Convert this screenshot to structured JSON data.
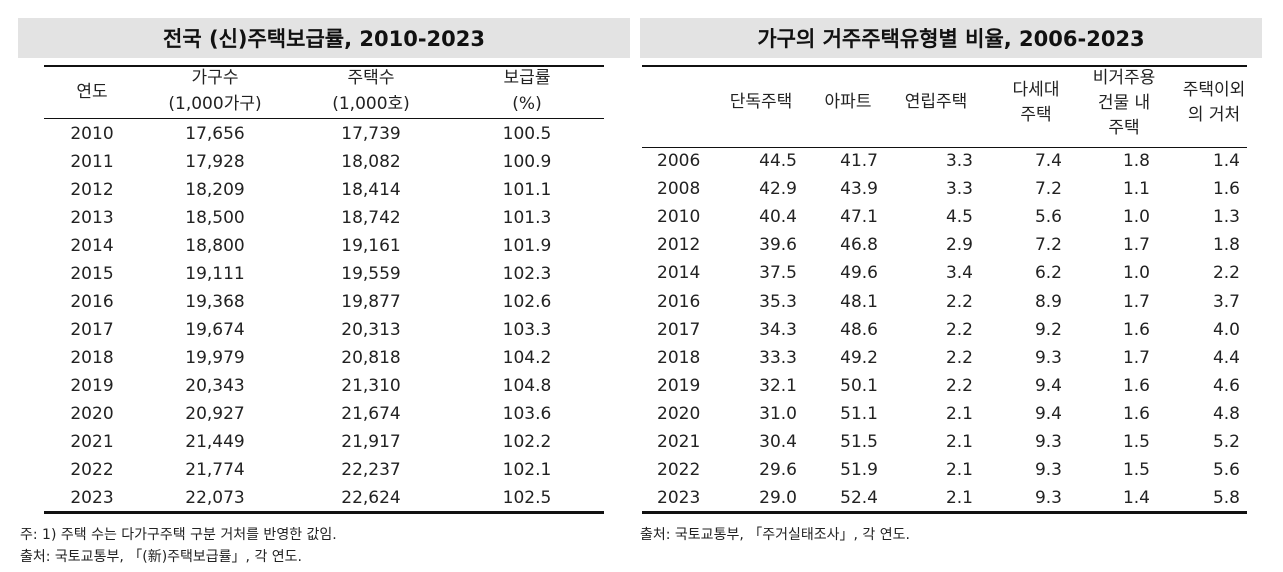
{
  "left": {
    "title": "전국 (신)주택보급률, 2010-2023",
    "headers": [
      [
        "연도"
      ],
      [
        "가구수",
        "(1,000가구)"
      ],
      [
        "주택수",
        "(1,000호)"
      ],
      [
        "보급률",
        "(%)"
      ]
    ],
    "rows": [
      [
        "2010",
        "17,656",
        "17,739",
        "100.5"
      ],
      [
        "2011",
        "17,928",
        "18,082",
        "100.9"
      ],
      [
        "2012",
        "18,209",
        "18,414",
        "101.1"
      ],
      [
        "2013",
        "18,500",
        "18,742",
        "101.3"
      ],
      [
        "2014",
        "18,800",
        "19,161",
        "101.9"
      ],
      [
        "2015",
        "19,111",
        "19,559",
        "102.3"
      ],
      [
        "2016",
        "19,368",
        "19,877",
        "102.6"
      ],
      [
        "2017",
        "19,674",
        "20,313",
        "103.3"
      ],
      [
        "2018",
        "19,979",
        "20,818",
        "104.2"
      ],
      [
        "2019",
        "20,343",
        "21,310",
        "104.8"
      ],
      [
        "2020",
        "20,927",
        "21,674",
        "103.6"
      ],
      [
        "2021",
        "21,449",
        "21,917",
        "102.2"
      ],
      [
        "2022",
        "21,774",
        "22,237",
        "102.1"
      ],
      [
        "2023",
        "22,073",
        "22,624",
        "102.5"
      ]
    ],
    "notes": [
      "주: 1) 주택 수는 다가구주택 구분 거처를 반영한 값임.",
      "출처: 국토교통부, 「(新)주택보급률」, 각 연도."
    ]
  },
  "right": {
    "title": "가구의 거주주택유형별 비율, 2006-2023",
    "headers": [
      [
        "단독주택"
      ],
      [
        "아파트"
      ],
      [
        "연립주택"
      ],
      [
        "다세대",
        "주택"
      ],
      [
        "비거주용",
        "건물 내",
        "주택"
      ],
      [
        "주택이외",
        "의 거처"
      ]
    ],
    "rows": [
      [
        "2006",
        "44.5",
        "41.7",
        "3.3",
        "7.4",
        "1.8",
        "1.4"
      ],
      [
        "2008",
        "42.9",
        "43.9",
        "3.3",
        "7.2",
        "1.1",
        "1.6"
      ],
      [
        "2010",
        "40.4",
        "47.1",
        "4.5",
        "5.6",
        "1.0",
        "1.3"
      ],
      [
        "2012",
        "39.6",
        "46.8",
        "2.9",
        "7.2",
        "1.7",
        "1.8"
      ],
      [
        "2014",
        "37.5",
        "49.6",
        "3.4",
        "6.2",
        "1.0",
        "2.2"
      ],
      [
        "2016",
        "35.3",
        "48.1",
        "2.2",
        "8.9",
        "1.7",
        "3.7"
      ],
      [
        "2017",
        "34.3",
        "48.6",
        "2.2",
        "9.2",
        "1.6",
        "4.0"
      ],
      [
        "2018",
        "33.3",
        "49.2",
        "2.2",
        "9.3",
        "1.7",
        "4.4"
      ],
      [
        "2019",
        "32.1",
        "50.1",
        "2.2",
        "9.4",
        "1.6",
        "4.6"
      ],
      [
        "2020",
        "31.0",
        "51.1",
        "2.1",
        "9.4",
        "1.6",
        "4.8"
      ],
      [
        "2021",
        "30.4",
        "51.5",
        "2.1",
        "9.3",
        "1.5",
        "5.2"
      ],
      [
        "2022",
        "29.6",
        "51.9",
        "2.1",
        "9.3",
        "1.5",
        "5.6"
      ],
      [
        "2023",
        "29.0",
        "52.4",
        "2.1",
        "9.3",
        "1.4",
        "5.8"
      ]
    ],
    "notes": [
      "출처: 국토교통부, 「주거실태조사」, 각 연도."
    ]
  }
}
